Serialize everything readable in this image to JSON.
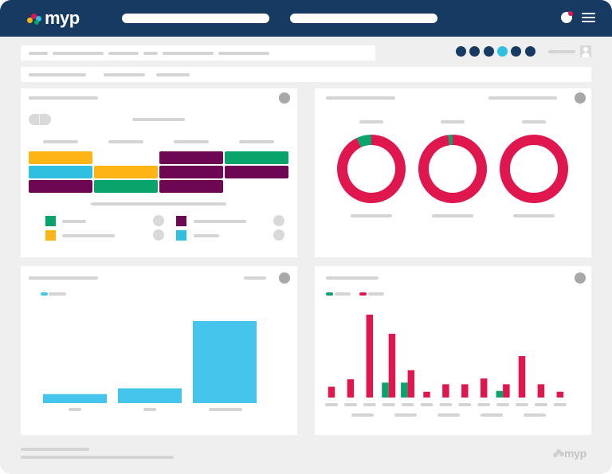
{
  "app": {
    "brand": "myp"
  },
  "colors": {
    "navy": "#173a62",
    "teal": "#2fbfe0",
    "yellow": "#fdb515",
    "green": "#08a46b",
    "purple": "#6d0653",
    "crimson": "#e0164f",
    "cyan_bar": "#45c5ec",
    "placeholder": "#d4d4d4"
  },
  "header": {
    "icons": [
      "logo-dots",
      "search-pill",
      "search-pill",
      "notification-icon",
      "hamburger-menu-icon"
    ]
  },
  "step_indicator": {
    "total": 6,
    "active_index": 3
  },
  "heatmap_panel": {
    "rows": [
      [
        "yellow",
        "",
        "purple",
        "green"
      ],
      [
        "teal",
        "yellow",
        "purple",
        "purple"
      ],
      [
        "purple",
        "green",
        "purple",
        ""
      ]
    ],
    "legend": [
      {
        "color": "green"
      },
      {
        "color": "yellow"
      },
      {
        "color": "purple"
      },
      {
        "color": "teal"
      }
    ]
  },
  "donut_panel": {
    "chart_data": {
      "type": "pie",
      "donuts": [
        {
          "slices": [
            {
              "color": "#e0164f",
              "fraction": 0.93
            },
            {
              "color": "#08a46b",
              "fraction": 0.07
            }
          ]
        },
        {
          "slices": [
            {
              "color": "#e0164f",
              "fraction": 0.98
            },
            {
              "color": "#08a46b",
              "fraction": 0.02
            }
          ]
        },
        {
          "slices": [
            {
              "color": "#e0164f",
              "fraction": 1.0
            }
          ]
        }
      ]
    }
  },
  "bar_panel": {
    "chart_data": {
      "type": "bar",
      "categories": [
        "",
        "",
        ""
      ],
      "values": [
        11,
        18,
        100
      ],
      "ylim": [
        0,
        100
      ],
      "color": "#45c5ec",
      "grid": false
    }
  },
  "grouped_bar_panel": {
    "chart_data": {
      "type": "bar",
      "categories": [
        "",
        "",
        "",
        "",
        "",
        "",
        "",
        "",
        "",
        "",
        "",
        "",
        ""
      ],
      "series": [
        {
          "color": "#08a46b",
          "values": [
            0,
            0,
            0,
            18,
            18,
            0,
            0,
            0,
            0,
            8,
            0,
            0,
            0
          ]
        },
        {
          "color": "#e0164f",
          "values": [
            13,
            22,
            100,
            77,
            33,
            7,
            16,
            16,
            23,
            16,
            50,
            16,
            7
          ]
        }
      ],
      "ylim": [
        0,
        100
      ],
      "grid": false,
      "legend": "top-left"
    }
  }
}
